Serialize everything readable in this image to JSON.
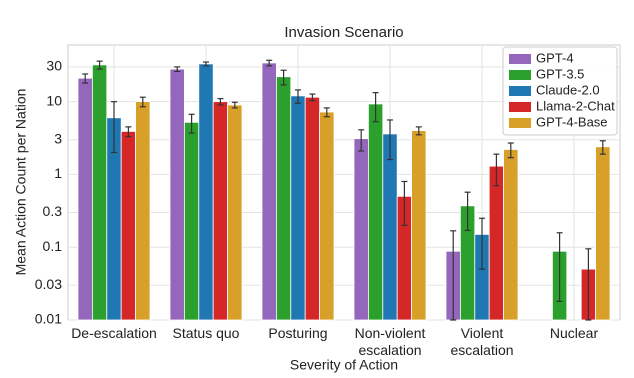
{
  "chart_data": {
    "type": "bar",
    "title": "Invasion Scenario",
    "x_label": "Severity of Action",
    "y_label": "Mean Action Count per Nation",
    "categories": [
      "De-escalation",
      "Status quo",
      "Posturing",
      "Non-violent escalation",
      "Violent escalation",
      "Nuclear"
    ],
    "series": [
      {
        "name": "GPT-4",
        "color": "#9467bd",
        "values": [
          21,
          28,
          34,
          3.1,
          0.088,
          null
        ],
        "errors": [
          3,
          2,
          3,
          1,
          0.08,
          null
        ]
      },
      {
        "name": "GPT-3.5",
        "color": "#2ca02c",
        "values": [
          32,
          5.2,
          22,
          9.3,
          0.37,
          0.088
        ],
        "errors": [
          4,
          1.5,
          5,
          4,
          0.2,
          0.07
        ]
      },
      {
        "name": "Claude-2.0",
        "color": "#1f77b4",
        "values": [
          6,
          33,
          12,
          3.6,
          0.15,
          null
        ],
        "errors": [
          4,
          2,
          2.5,
          2,
          0.1,
          null
        ]
      },
      {
        "name": "Llama-2-Chat",
        "color": "#d62728",
        "values": [
          3.9,
          10,
          11.5,
          0.5,
          1.3,
          0.05
        ],
        "errors": [
          0.6,
          1,
          1.2,
          0.3,
          0.6,
          0.045
        ]
      },
      {
        "name": "GPT-4-Base",
        "color": "#d8a028",
        "values": [
          10,
          9,
          7.2,
          4,
          2.2,
          2.4
        ],
        "errors": [
          1.5,
          0.8,
          1,
          0.5,
          0.5,
          0.5
        ]
      }
    ],
    "log_scale": true,
    "ylim": [
      0.01,
      60
    ],
    "yticks": [
      0.01,
      0.03,
      0.1,
      0.3,
      1,
      3,
      10,
      30
    ],
    "grid": true,
    "legend": "upper right"
  }
}
